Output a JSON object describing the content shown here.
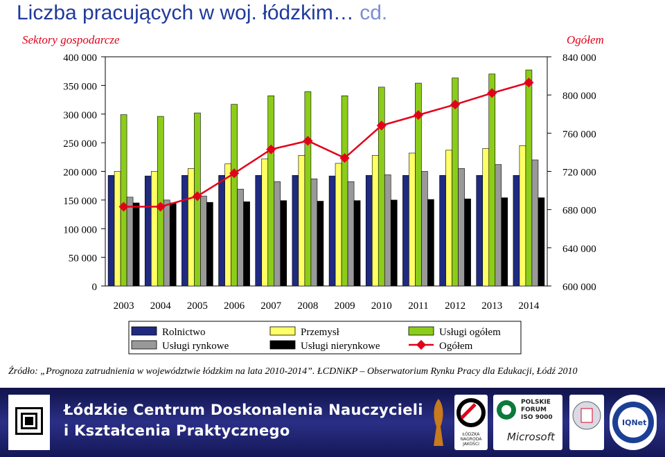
{
  "page": {
    "title_main": "Liczba pracujących w woj. łódzkim…",
    "title_tail": "cd.",
    "left_axis_title": "Sektory gospodarcze",
    "right_axis_title": "Ogółem",
    "source": "Źródło: „Prognoza zatrudnienia w województwie łódzkim na lata 2010-2014”. ŁCDNiKP – Obserwatorium Rynku Pracy dla Edukacji, Łódź 2010"
  },
  "footer": {
    "org_line1": "Łódzkie Centrum Doskonalenia Nauczycieli",
    "org_line2": "i Kształcenia Praktycznego",
    "badge_polish_forum": "POLSKIE FORUM ISO 9000",
    "badge_microsoft": "Microsoft",
    "badge_lodzka": "ŁÓDZKA NAGRODA JAKOŚCI",
    "badge_iqnet": "IQNet"
  },
  "chart_data": {
    "type": "bar",
    "categories": [
      "2003",
      "2004",
      "2005",
      "2006",
      "2007",
      "2008",
      "2009",
      "2010",
      "2011",
      "2012",
      "2013",
      "2014"
    ],
    "left_axis": {
      "min": 0,
      "max": 400000,
      "ticks": [
        0,
        50000,
        100000,
        150000,
        200000,
        250000,
        300000,
        350000,
        400000
      ],
      "tick_labels": [
        "0",
        "50 000",
        "100 000",
        "150 000",
        "200 000",
        "250 000",
        "300 000",
        "350 000",
        "400 000"
      ]
    },
    "right_axis": {
      "min": 600000,
      "max": 840000,
      "ticks": [
        600000,
        640000,
        680000,
        720000,
        760000,
        800000,
        840000
      ],
      "tick_labels": [
        "600 000",
        "640 000",
        "680 000",
        "720 000",
        "760 000",
        "800 000",
        "840 000"
      ]
    },
    "series": [
      {
        "name": "Rolnictwo",
        "color": "#1f2a80",
        "axis": "left",
        "values": [
          193000,
          192000,
          193000,
          193000,
          193000,
          193000,
          192000,
          193000,
          193000,
          193000,
          193000,
          193000
        ]
      },
      {
        "name": "Przemysł",
        "color": "#ffff66",
        "axis": "left",
        "values": [
          200000,
          200000,
          205000,
          213000,
          222000,
          228000,
          214000,
          228000,
          232000,
          237000,
          240000,
          245000
        ]
      },
      {
        "name": "Usługi ogółem",
        "color": "#8ccc1a",
        "axis": "left",
        "values": [
          299000,
          296000,
          302000,
          317000,
          332000,
          339000,
          332000,
          347000,
          354000,
          363000,
          370000,
          377000
        ]
      },
      {
        "name": "Usługi rynkowe",
        "color": "#999999",
        "axis": "left",
        "values": [
          155000,
          150000,
          157000,
          169000,
          182000,
          187000,
          182000,
          194000,
          200000,
          205000,
          212000,
          220000
        ]
      },
      {
        "name": "Usługi nierynkowe",
        "color": "#000000",
        "axis": "left",
        "values": [
          145000,
          145000,
          146000,
          147000,
          149000,
          148000,
          149000,
          150000,
          151000,
          152000,
          154000,
          154000
        ]
      },
      {
        "name": "Ogółem",
        "color": "#e2001a",
        "axis": "right",
        "type": "line",
        "values": [
          683000,
          683000,
          694000,
          718000,
          743000,
          752000,
          734000,
          768000,
          779000,
          790000,
          802000,
          813000
        ]
      }
    ],
    "legend_position": "bottom",
    "grid": false
  }
}
